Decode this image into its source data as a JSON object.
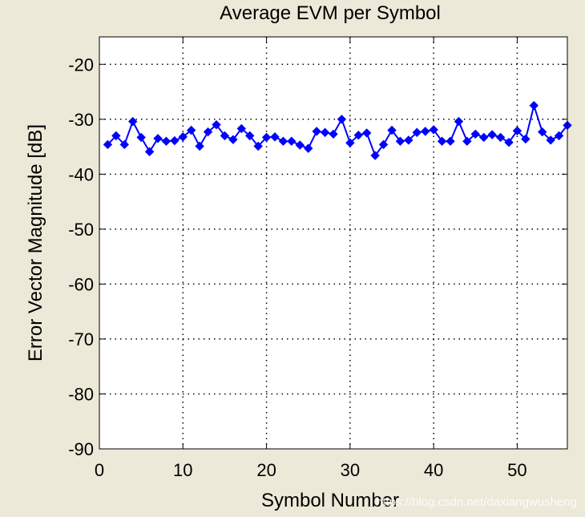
{
  "colors": {
    "background": "#ece9d8",
    "plot_area": "#ffffff",
    "series": "#0000ff",
    "grid": "#000000"
  },
  "watermark": "https://blog.csdn.net/daxiangwusheng",
  "chart_data": {
    "type": "line",
    "title": "Average EVM per Symbol",
    "xlabel": "Symbol Number",
    "ylabel": "Error Vector Magnitude [dB]",
    "xlim": [
      0,
      56
    ],
    "ylim": [
      -90,
      -15
    ],
    "xticks": [
      0,
      10,
      20,
      30,
      40,
      50
    ],
    "yticks": [
      -90,
      -80,
      -70,
      -60,
      -50,
      -40,
      -30,
      -20
    ],
    "grid": true,
    "grid_style": "dotted",
    "marker": "diamond",
    "series": [
      {
        "x": [
          1,
          2,
          3,
          4,
          5,
          6,
          7,
          8,
          9,
          10,
          11,
          12,
          13,
          14,
          15,
          16,
          17,
          18,
          19,
          20,
          21,
          22,
          23,
          24,
          25,
          26,
          27,
          28,
          29,
          30,
          31,
          32,
          33,
          34,
          35,
          36,
          37,
          38,
          39,
          40,
          41,
          42,
          43,
          44,
          45,
          46,
          47,
          48,
          49,
          50,
          51,
          52,
          53,
          54,
          55,
          56
        ],
        "values": [
          -34.6,
          -33.0,
          -34.6,
          -30.4,
          -33.3,
          -35.9,
          -33.5,
          -34.0,
          -33.9,
          -33.2,
          -32.0,
          -34.9,
          -32.3,
          -31.0,
          -33.0,
          -33.7,
          -31.7,
          -33.0,
          -34.9,
          -33.3,
          -33.2,
          -34.0,
          -34.0,
          -34.7,
          -35.3,
          -32.2,
          -32.4,
          -32.7,
          -30.0,
          -34.3,
          -32.9,
          -32.5,
          -36.6,
          -34.6,
          -32.0,
          -34.0,
          -33.8,
          -32.4,
          -32.2,
          -31.9,
          -34.0,
          -34.0,
          -30.4,
          -34.0,
          -32.7,
          -33.3,
          -32.8,
          -33.3,
          -34.2,
          -32.1,
          -33.6,
          -27.5,
          -32.3,
          -33.8,
          -33.0,
          -31.1
        ]
      }
    ]
  }
}
